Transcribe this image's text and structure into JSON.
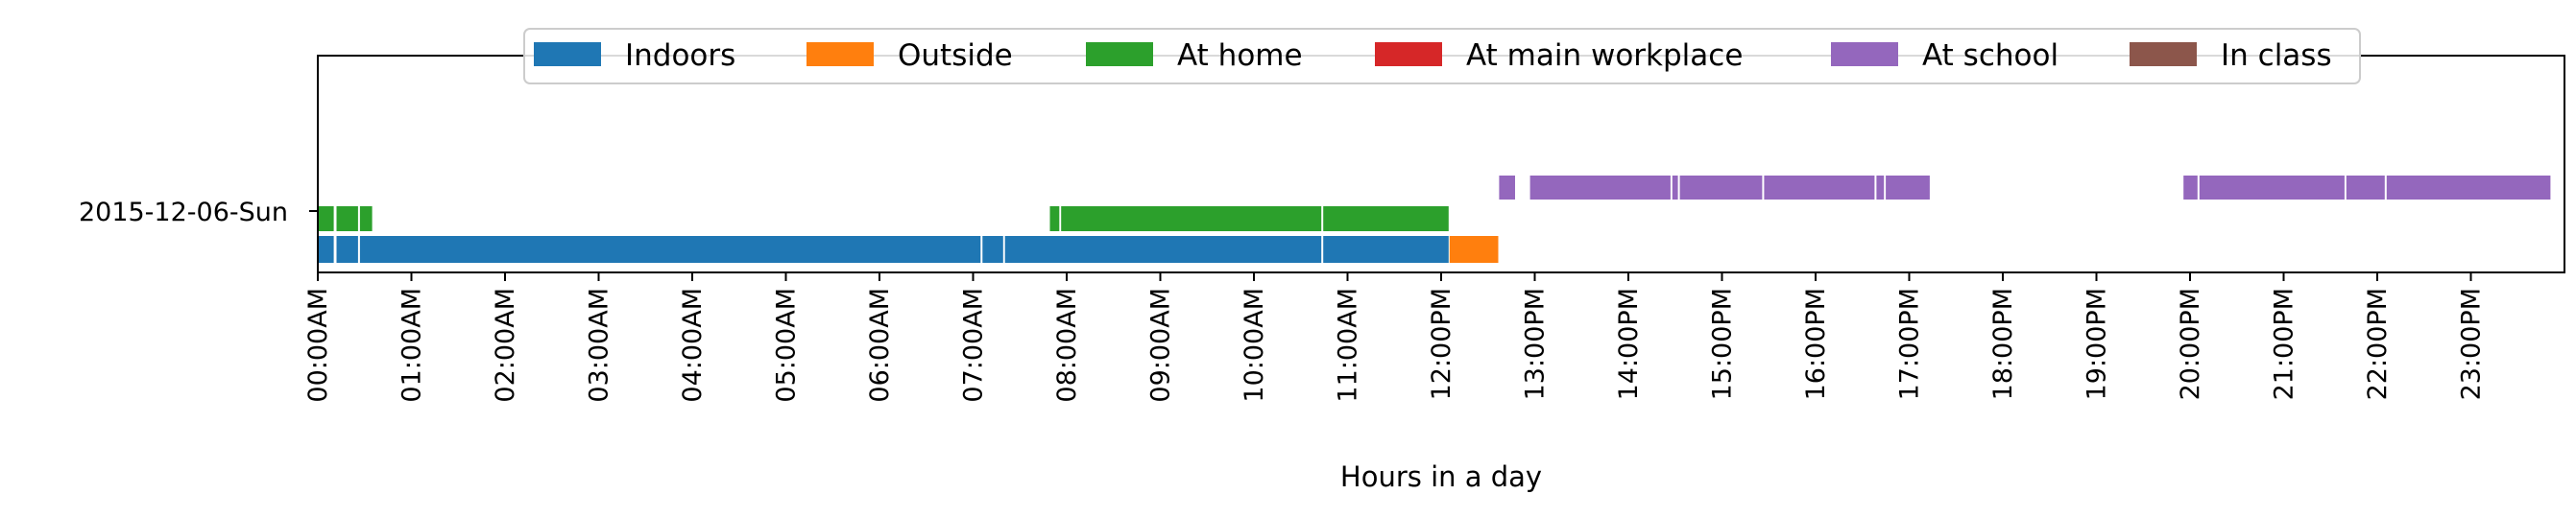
{
  "chart_data": {
    "type": "timeline",
    "xlabel": "Hours in a day",
    "ylabel": "",
    "xlim": [
      0,
      24
    ],
    "grid": false,
    "legend_placement": "top-center",
    "row_label": "2015-12-06-Sun",
    "x_ticks": [
      "00:00AM",
      "01:00AM",
      "02:00AM",
      "03:00AM",
      "04:00AM",
      "05:00AM",
      "06:00AM",
      "07:00AM",
      "08:00AM",
      "09:00AM",
      "10:00AM",
      "11:00AM",
      "12:00PM",
      "13:00PM",
      "14:00PM",
      "15:00PM",
      "16:00PM",
      "17:00PM",
      "18:00PM",
      "19:00PM",
      "20:00PM",
      "21:00PM",
      "22:00PM",
      "23:00PM"
    ],
    "series": [
      {
        "name": "Indoors",
        "color": "#1f77b4",
        "lane": 0,
        "intervals": [
          [
            0.0,
            0.17
          ],
          [
            0.2,
            0.43
          ],
          [
            0.45,
            7.08
          ],
          [
            7.1,
            7.32
          ],
          [
            7.34,
            10.72
          ],
          [
            10.74,
            12.08
          ]
        ]
      },
      {
        "name": "Outside",
        "color": "#ff7f0e",
        "lane": 0,
        "intervals": [
          [
            12.09,
            12.61
          ]
        ]
      },
      {
        "name": "At home",
        "color": "#2ca02c",
        "lane": 1,
        "intervals": [
          [
            0.0,
            0.17
          ],
          [
            0.2,
            0.43
          ],
          [
            0.45,
            0.58
          ],
          [
            7.82,
            7.92
          ],
          [
            7.94,
            10.72
          ],
          [
            10.74,
            12.08
          ]
        ]
      },
      {
        "name": "At main workplace",
        "color": "#d62728",
        "lane": 2,
        "intervals": []
      },
      {
        "name": "At school",
        "color": "#9467bd",
        "lane": 2,
        "intervals": [
          [
            12.62,
            12.79
          ],
          [
            12.95,
            14.45
          ],
          [
            14.47,
            14.53
          ],
          [
            14.55,
            15.43
          ],
          [
            15.45,
            16.63
          ],
          [
            16.65,
            16.73
          ],
          [
            16.75,
            17.22
          ],
          [
            19.93,
            20.08
          ],
          [
            20.1,
            21.65
          ],
          [
            21.67,
            22.08
          ],
          [
            22.1,
            23.85
          ]
        ]
      },
      {
        "name": "In class",
        "color": "#8c564b",
        "lane": 3,
        "intervals": []
      }
    ]
  }
}
